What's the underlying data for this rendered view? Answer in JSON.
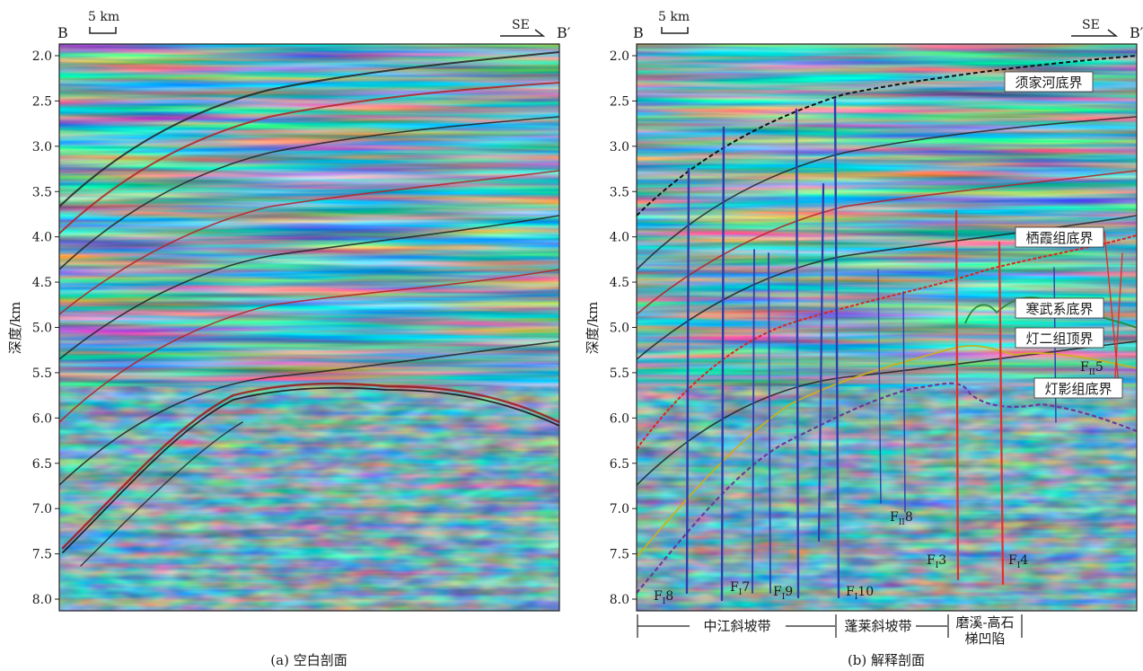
{
  "panels": [
    {
      "id": "a",
      "caption": "(a) 空白剖面",
      "left_label": "B",
      "right_label": "B′",
      "direction": "SE",
      "scale_bar": "5 km",
      "ylabel": "深度/km",
      "yticks": [
        "2.0",
        "2.5",
        "3.0",
        "3.5",
        "4.0",
        "4.5",
        "5.0",
        "5.5",
        "6.0",
        "6.5",
        "7.0",
        "7.5",
        "8.0"
      ]
    },
    {
      "id": "b",
      "caption": "(b) 解释剖面",
      "left_label": "B",
      "right_label": "B′",
      "direction": "SE",
      "scale_bar": "5 km",
      "ylabel": "深度/km",
      "yticks": [
        "2.0",
        "2.5",
        "3.0",
        "3.5",
        "4.0",
        "4.5",
        "5.0",
        "5.5",
        "6.0",
        "6.5",
        "7.0",
        "7.5",
        "8.0"
      ],
      "horizons": [
        "须家河底界",
        "栖霞组底界",
        "寒武系底界",
        "灯二组顶界",
        "灯影组底界"
      ],
      "fault_labels": [
        {
          "main": "F",
          "sub": "I",
          "num": "8"
        },
        {
          "main": "F",
          "sub": "I",
          "num": "7"
        },
        {
          "main": "F",
          "sub": "I",
          "num": "9"
        },
        {
          "main": "F",
          "sub": "I",
          "num": "10"
        },
        {
          "main": "F",
          "sub": "II",
          "num": "8"
        },
        {
          "main": "F",
          "sub": "I",
          "num": "3"
        },
        {
          "main": "F",
          "sub": "I",
          "num": "4"
        },
        {
          "main": "F",
          "sub": "II",
          "num": "5"
        }
      ],
      "zones": [
        "中江斜坡带",
        "蓬莱斜坡带",
        "磨溪-高石",
        "梯凹陷"
      ]
    }
  ],
  "colors": {
    "fault_blue": "#2e3ea8",
    "fault_red": "#e0302a",
    "horizon_black": "#111111",
    "horizon_red": "#d8261f",
    "horizon_green": "#2a8a3a",
    "horizon_yellow": "#c8b020",
    "horizon_purple": "#6a3a9a"
  }
}
